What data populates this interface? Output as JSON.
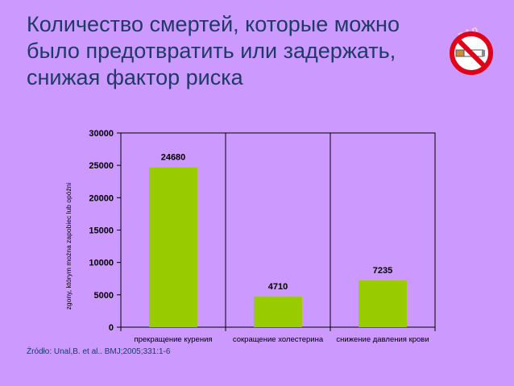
{
  "slide": {
    "title": "Количество смертей, которые можно было предотвратить или задержать, снижая фактор риска",
    "source": "Źródło: Unal,B. et al.. BMJ;2005;331:1-6",
    "icon": "no-smoking-icon",
    "icon_mark": "p.t.p"
  },
  "chart_data": {
    "type": "bar",
    "categories": [
      "прекращение курения",
      "сокращение холестерина",
      "снижение давления крови"
    ],
    "values": [
      24680,
      4710,
      7235
    ],
    "data_labels": [
      "24680",
      "4710",
      "7235"
    ],
    "title": "",
    "xlabel": "",
    "ylabel": "zgony, którym można zapobiec lub opóźni",
    "ylim": [
      0,
      30000
    ],
    "yticks": [
      "0",
      "5000",
      "10000",
      "15000",
      "20000",
      "25000",
      "30000"
    ],
    "grid": "vertical category separators",
    "bar_color": "#99cc00",
    "legend": "none"
  }
}
